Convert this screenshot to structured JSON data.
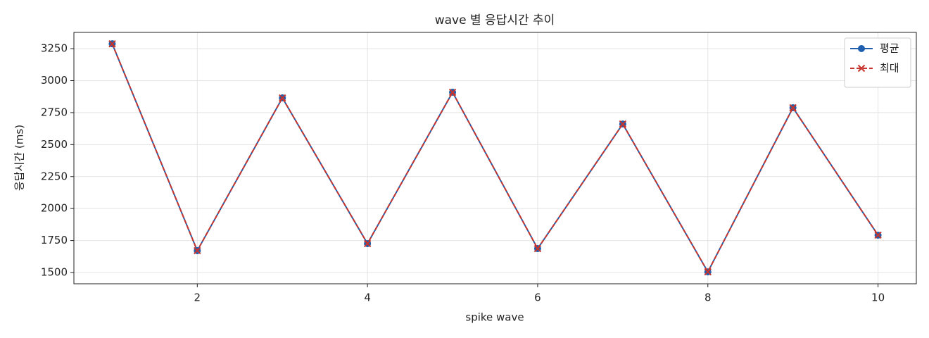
{
  "chart_data": {
    "type": "line",
    "title": "wave 별 응답시간 추이",
    "x_label": "spike wave",
    "y_label": "응답시간 (ms)",
    "x": [
      1,
      2,
      3,
      4,
      5,
      6,
      7,
      8,
      9,
      10
    ],
    "series": [
      {
        "name": "평균",
        "color": "#1f5fad",
        "marker": "o",
        "dash": false,
        "values": [
          3288,
          1671,
          2865,
          1726,
          2909,
          1687,
          2661,
          1505,
          2788,
          1792
        ]
      },
      {
        "name": "최대",
        "color": "#c8352e",
        "marker": "x",
        "dash": true,
        "values": [
          3288,
          1671,
          2865,
          1726,
          2909,
          1687,
          2661,
          1505,
          2788,
          1792
        ]
      }
    ],
    "xlim": [
      0.55,
      10.45
    ],
    "ylim": [
      1412,
      3377
    ],
    "xticks": [
      2,
      4,
      6,
      8,
      10
    ],
    "yticks": [
      1500,
      1750,
      2000,
      2250,
      2500,
      2750,
      3000,
      3250
    ],
    "grid": true,
    "legend": "upper right"
  }
}
